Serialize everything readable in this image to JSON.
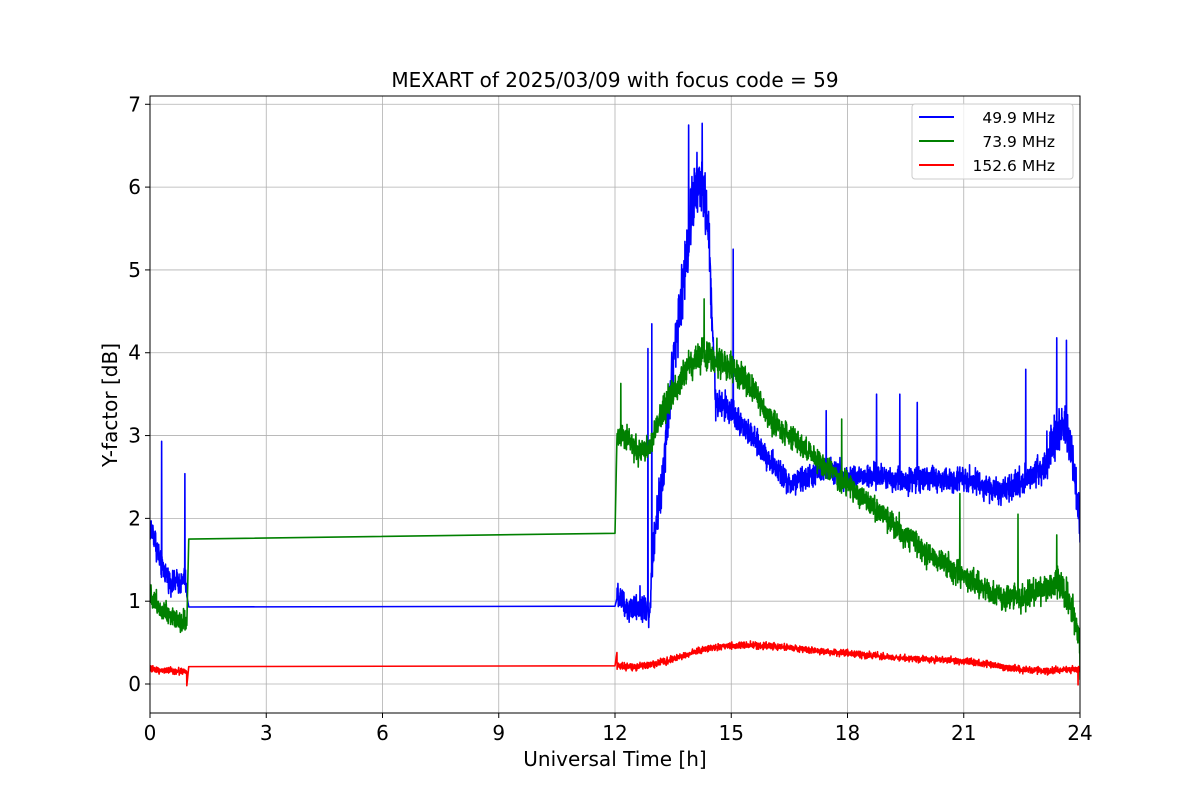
{
  "chart_data": {
    "type": "line",
    "title": "MEXART of 2025/03/09 with focus code = 59",
    "xlabel": "Universal Time [h]",
    "ylabel": "Y-factor [dB]",
    "xlim": [
      0,
      24
    ],
    "ylim": [
      -0.35,
      7.1
    ],
    "xticks": [
      0,
      3,
      6,
      9,
      12,
      15,
      18,
      21,
      24
    ],
    "yticks": [
      0,
      1,
      2,
      3,
      4,
      5,
      6,
      7
    ],
    "grid": true,
    "legend_position": "top-right",
    "series": [
      {
        "name": "49.9 MHz",
        "color": "#0000ff",
        "x": [
          0.0,
          0.1,
          0.2,
          0.3,
          0.4,
          0.5,
          0.6,
          0.7,
          0.8,
          0.9,
          0.95,
          1.0,
          12.0,
          12.05,
          12.3,
          12.6,
          12.9,
          13.0,
          13.2,
          13.4,
          13.6,
          13.8,
          14.0,
          14.2,
          14.4,
          14.6,
          15.0,
          15.5,
          16.0,
          16.5,
          17.0,
          17.5,
          18.0,
          18.5,
          19.0,
          19.5,
          20.0,
          20.5,
          21.0,
          21.5,
          22.0,
          22.5,
          23.0,
          23.4,
          23.6,
          23.8,
          24.0
        ],
        "y": [
          1.9,
          1.8,
          1.6,
          1.4,
          1.35,
          1.25,
          1.2,
          1.25,
          1.2,
          1.3,
          1.1,
          0.93,
          0.94,
          1.1,
          0.9,
          0.95,
          0.9,
          1.8,
          2.4,
          3.4,
          4.3,
          5.0,
          5.8,
          6.1,
          5.6,
          3.4,
          3.3,
          3.0,
          2.7,
          2.4,
          2.5,
          2.6,
          2.5,
          2.5,
          2.5,
          2.45,
          2.5,
          2.45,
          2.5,
          2.4,
          2.3,
          2.45,
          2.6,
          3.0,
          3.1,
          2.8,
          1.9
        ],
        "spread": [
          0.25,
          0.25,
          0.25,
          0.2,
          0.2,
          0.2,
          0.2,
          0.2,
          0.2,
          0.2,
          0.2,
          0.05,
          0.05,
          0.25,
          0.25,
          0.25,
          0.25,
          0.35,
          0.4,
          0.5,
          0.5,
          0.55,
          0.6,
          0.55,
          0.5,
          0.3,
          0.25,
          0.22,
          0.22,
          0.22,
          0.22,
          0.22,
          0.22,
          0.22,
          0.22,
          0.22,
          0.22,
          0.22,
          0.22,
          0.22,
          0.22,
          0.25,
          0.3,
          0.4,
          0.4,
          0.35,
          0.3
        ],
        "spikes": [
          {
            "x": 0.3,
            "y": 2.93
          },
          {
            "x": 0.9,
            "y": 2.54
          },
          {
            "x": 12.85,
            "y": 4.05
          },
          {
            "x": 12.95,
            "y": 4.35
          },
          {
            "x": 13.9,
            "y": 6.75
          },
          {
            "x": 14.25,
            "y": 6.77
          },
          {
            "x": 15.05,
            "y": 5.25
          },
          {
            "x": 17.45,
            "y": 3.3
          },
          {
            "x": 18.75,
            "y": 3.5
          },
          {
            "x": 19.35,
            "y": 3.5
          },
          {
            "x": 19.8,
            "y": 3.4
          },
          {
            "x": 22.6,
            "y": 3.8
          },
          {
            "x": 23.4,
            "y": 4.18
          },
          {
            "x": 23.65,
            "y": 4.15
          }
        ]
      },
      {
        "name": "73.9 MHz",
        "color": "#008000",
        "x": [
          0.0,
          0.1,
          0.2,
          0.3,
          0.4,
          0.5,
          0.6,
          0.7,
          0.8,
          0.9,
          0.95,
          1.0,
          12.0,
          12.05,
          12.3,
          12.6,
          12.9,
          13.2,
          13.5,
          13.8,
          14.0,
          14.3,
          14.6,
          15.0,
          15.5,
          16.0,
          16.5,
          17.0,
          17.5,
          18.0,
          18.5,
          19.0,
          19.5,
          20.0,
          20.5,
          21.0,
          21.5,
          22.0,
          22.5,
          23.0,
          23.5,
          23.8,
          24.0
        ],
        "y": [
          1.1,
          1.0,
          0.95,
          0.9,
          0.9,
          0.85,
          0.8,
          0.8,
          0.75,
          0.8,
          0.7,
          1.75,
          1.82,
          3.0,
          2.95,
          2.8,
          2.85,
          3.3,
          3.5,
          3.8,
          3.9,
          4.0,
          3.95,
          3.8,
          3.6,
          3.2,
          3.0,
          2.8,
          2.6,
          2.4,
          2.2,
          2.0,
          1.8,
          1.6,
          1.45,
          1.3,
          1.15,
          1.05,
          1.05,
          1.15,
          1.2,
          0.9,
          0.5
        ],
        "spread": [
          0.2,
          0.2,
          0.2,
          0.2,
          0.2,
          0.2,
          0.2,
          0.2,
          0.2,
          0.2,
          0.2,
          0.02,
          0.02,
          0.22,
          0.22,
          0.22,
          0.22,
          0.25,
          0.28,
          0.28,
          0.28,
          0.3,
          0.3,
          0.25,
          0.22,
          0.22,
          0.22,
          0.22,
          0.22,
          0.22,
          0.22,
          0.22,
          0.22,
          0.22,
          0.22,
          0.22,
          0.22,
          0.22,
          0.25,
          0.25,
          0.28,
          0.28,
          0.25
        ],
        "spikes": [
          {
            "x": 12.15,
            "y": 3.63
          },
          {
            "x": 14.3,
            "y": 4.65
          },
          {
            "x": 17.85,
            "y": 3.2
          },
          {
            "x": 20.9,
            "y": 2.3
          },
          {
            "x": 22.4,
            "y": 2.05
          },
          {
            "x": 23.4,
            "y": 1.8
          },
          {
            "x": 24.0,
            "y": 0.05
          }
        ]
      },
      {
        "name": "152.6 MHz",
        "color": "#ff0000",
        "x": [
          0.0,
          0.5,
          0.95,
          1.0,
          12.0,
          12.05,
          12.5,
          13.0,
          13.5,
          14.0,
          14.5,
          15.0,
          15.5,
          16.0,
          16.5,
          17.0,
          17.5,
          18.0,
          18.5,
          19.0,
          19.5,
          20.0,
          20.5,
          21.0,
          21.5,
          22.0,
          22.5,
          23.0,
          23.5,
          24.0
        ],
        "y": [
          0.18,
          0.16,
          0.15,
          0.21,
          0.22,
          0.22,
          0.2,
          0.24,
          0.3,
          0.38,
          0.44,
          0.46,
          0.47,
          0.46,
          0.44,
          0.41,
          0.39,
          0.37,
          0.35,
          0.33,
          0.31,
          0.3,
          0.29,
          0.27,
          0.25,
          0.21,
          0.17,
          0.16,
          0.17,
          0.18
        ],
        "spread": [
          0.06,
          0.06,
          0.06,
          0.01,
          0.01,
          0.06,
          0.06,
          0.06,
          0.06,
          0.06,
          0.06,
          0.06,
          0.06,
          0.06,
          0.06,
          0.06,
          0.06,
          0.06,
          0.06,
          0.06,
          0.06,
          0.06,
          0.06,
          0.06,
          0.06,
          0.06,
          0.06,
          0.06,
          0.06,
          0.06
        ],
        "spikes": [
          {
            "x": 0.95,
            "y": -0.02
          },
          {
            "x": 12.05,
            "y": 0.38
          },
          {
            "x": 23.95,
            "y": -0.01
          }
        ]
      }
    ]
  }
}
